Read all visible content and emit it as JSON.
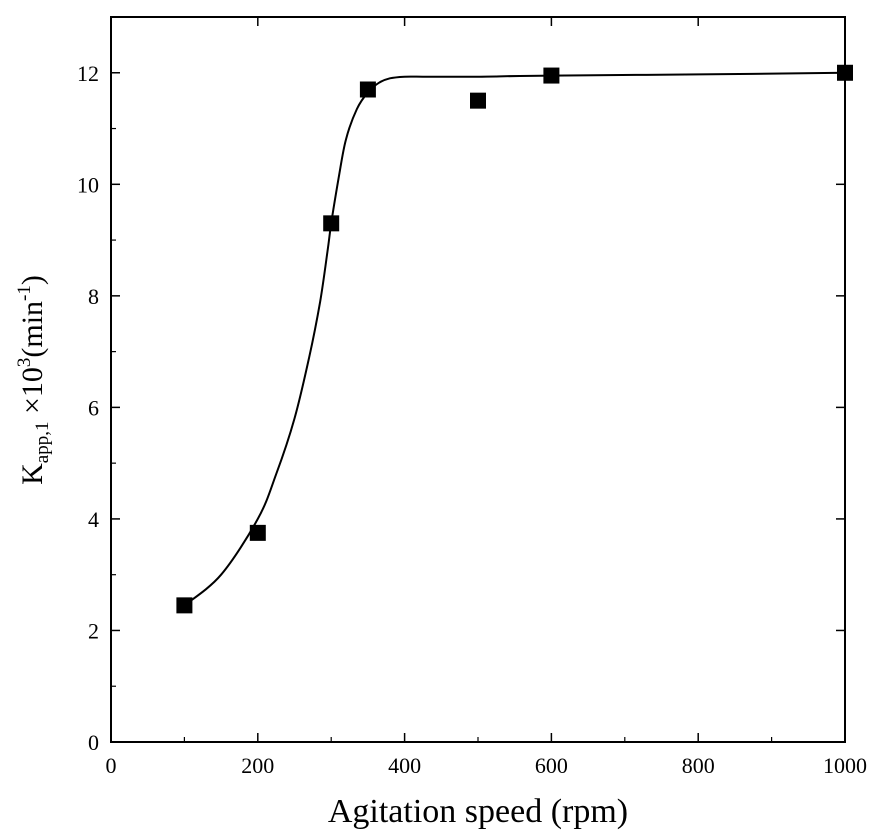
{
  "chart_data": {
    "type": "scatter",
    "title": "",
    "xlabel": "Agitation speed (rpm)",
    "ylabel": {
      "main": "K",
      "subscript": "app,1",
      "factor": " ×10",
      "superscript_1": "3",
      "unit_open": "(min",
      "superscript_2": "-1",
      "unit_close": ")"
    },
    "xlim": [
      0,
      1000
    ],
    "ylim": [
      0,
      13
    ],
    "xticks": [
      0,
      200,
      400,
      600,
      800,
      1000
    ],
    "xtick_labels": [
      "0",
      "200",
      "400",
      "600",
      "800",
      "1000"
    ],
    "yticks": [
      0,
      2,
      4,
      6,
      8,
      10,
      12
    ],
    "ytick_labels": [
      "0",
      "2",
      "4",
      "6",
      "8",
      "10",
      "12"
    ],
    "grid": false,
    "legend": "none",
    "series": [
      {
        "marker": "square",
        "color": "#000000",
        "x": [
          100,
          200,
          300,
          350,
          500,
          600,
          1000
        ],
        "y": [
          2.45,
          3.75,
          9.3,
          11.7,
          11.5,
          11.95,
          12.0
        ]
      }
    ],
    "fit_curve": {
      "style": "smooth-line",
      "color": "#000000",
      "x": [
        100,
        150,
        200,
        225,
        250,
        270,
        285,
        295,
        300,
        310,
        320,
        335,
        350,
        365,
        380,
        400,
        425,
        450,
        500,
        600,
        800,
        1000
      ],
      "y": [
        2.45,
        3.0,
        4.0,
        4.8,
        5.8,
        6.9,
        7.9,
        8.8,
        9.3,
        10.1,
        10.8,
        11.35,
        11.65,
        11.82,
        11.9,
        11.93,
        11.93,
        11.93,
        11.93,
        11.95,
        11.97,
        12.0
      ]
    }
  }
}
